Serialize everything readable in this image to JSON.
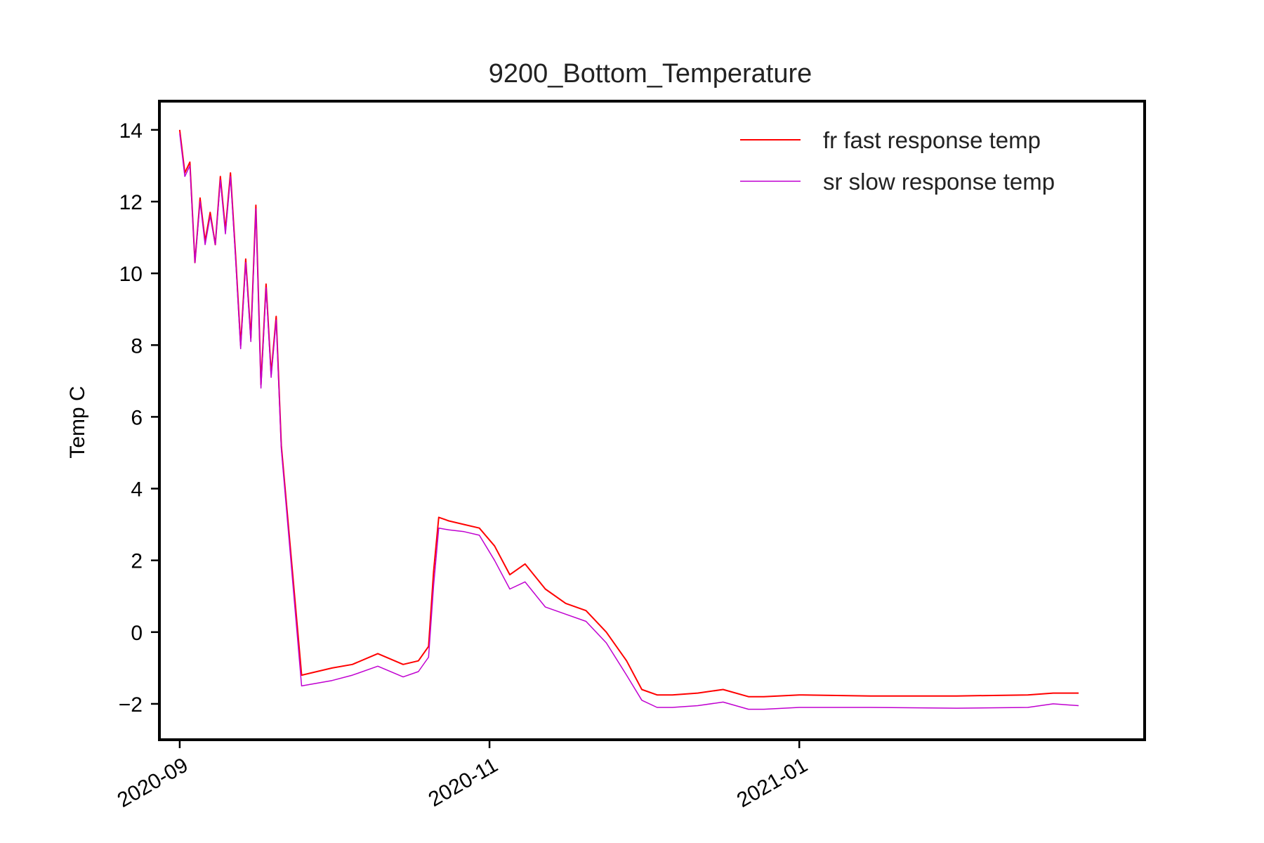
{
  "chart_data": {
    "type": "line",
    "title": "9200_Bottom_Temperature",
    "xlabel": "",
    "ylabel": "Temp C",
    "x_type": "date",
    "xlim": [
      "2020-08-28",
      "2021-03-10"
    ],
    "ylim": [
      -3,
      14.8
    ],
    "xticks": [
      "2020-09",
      "2020-11",
      "2021-01"
    ],
    "xtick_dates": [
      "2020-09-01",
      "2020-11-01",
      "2021-01-01"
    ],
    "yticks": [
      14,
      12,
      10,
      8,
      6,
      4,
      2,
      0,
      -2
    ],
    "ytick_labels": [
      "14",
      "12",
      "10",
      "8",
      "6",
      "4",
      "2",
      "0",
      "−2"
    ],
    "grid": false,
    "legend_position": "top-right",
    "series": [
      {
        "name": "fr fast response temp",
        "color": "#ff0000",
        "x": [
          "2020-09-01",
          "2020-09-02",
          "2020-09-03",
          "2020-09-04",
          "2020-09-05",
          "2020-09-06",
          "2020-09-07",
          "2020-09-08",
          "2020-09-09",
          "2020-09-10",
          "2020-09-11",
          "2020-09-12",
          "2020-09-13",
          "2020-09-14",
          "2020-09-15",
          "2020-09-16",
          "2020-09-17",
          "2020-09-18",
          "2020-09-19",
          "2020-09-20",
          "2020-09-21",
          "2020-09-25",
          "2020-10-01",
          "2020-10-05",
          "2020-10-10",
          "2020-10-15",
          "2020-10-18",
          "2020-10-20",
          "2020-10-21",
          "2020-10-22",
          "2020-10-24",
          "2020-10-27",
          "2020-10-30",
          "2020-11-02",
          "2020-11-05",
          "2020-11-08",
          "2020-11-12",
          "2020-11-16",
          "2020-11-20",
          "2020-11-24",
          "2020-11-28",
          "2020-12-01",
          "2020-12-04",
          "2020-12-07",
          "2020-12-12",
          "2020-12-17",
          "2020-12-22",
          "2020-12-25",
          "2021-01-01",
          "2021-01-15",
          "2021-02-01",
          "2021-02-15",
          "2021-02-20",
          "2021-02-25"
        ],
        "y": [
          14.0,
          12.8,
          13.1,
          10.3,
          12.1,
          10.9,
          11.7,
          10.8,
          12.7,
          11.2,
          12.8,
          10.5,
          8.0,
          10.4,
          8.2,
          11.9,
          6.9,
          9.7,
          7.2,
          8.8,
          5.2,
          -1.2,
          -1.0,
          -0.9,
          -0.6,
          -0.9,
          -0.8,
          -0.4,
          1.7,
          3.2,
          3.1,
          3.0,
          2.9,
          2.4,
          1.6,
          1.9,
          1.2,
          0.8,
          0.6,
          0.0,
          -0.8,
          -1.6,
          -1.75,
          -1.75,
          -1.7,
          -1.6,
          -1.8,
          -1.8,
          -1.75,
          -1.78,
          -1.78,
          -1.75,
          -1.7,
          -1.7
        ]
      },
      {
        "name": "sr slow response temp",
        "color": "#c000d0",
        "x": [
          "2020-09-01",
          "2020-09-02",
          "2020-09-03",
          "2020-09-04",
          "2020-09-05",
          "2020-09-06",
          "2020-09-07",
          "2020-09-08",
          "2020-09-09",
          "2020-09-10",
          "2020-09-11",
          "2020-09-12",
          "2020-09-13",
          "2020-09-14",
          "2020-09-15",
          "2020-09-16",
          "2020-09-17",
          "2020-09-18",
          "2020-09-19",
          "2020-09-20",
          "2020-09-21",
          "2020-09-25",
          "2020-10-01",
          "2020-10-05",
          "2020-10-10",
          "2020-10-15",
          "2020-10-18",
          "2020-10-20",
          "2020-10-21",
          "2020-10-22",
          "2020-10-24",
          "2020-10-27",
          "2020-10-30",
          "2020-11-02",
          "2020-11-05",
          "2020-11-08",
          "2020-11-12",
          "2020-11-16",
          "2020-11-20",
          "2020-11-24",
          "2020-11-28",
          "2020-12-01",
          "2020-12-04",
          "2020-12-07",
          "2020-12-12",
          "2020-12-17",
          "2020-12-22",
          "2020-12-25",
          "2021-01-01",
          "2021-01-15",
          "2021-02-01",
          "2021-02-15",
          "2021-02-20",
          "2021-02-25"
        ],
        "y": [
          13.9,
          12.7,
          13.0,
          10.3,
          12.0,
          10.8,
          11.6,
          10.8,
          12.6,
          11.1,
          12.7,
          10.4,
          7.9,
          10.3,
          8.1,
          11.8,
          6.8,
          9.6,
          7.1,
          8.7,
          5.1,
          -1.5,
          -1.35,
          -1.2,
          -0.95,
          -1.25,
          -1.1,
          -0.7,
          1.3,
          2.9,
          2.85,
          2.8,
          2.7,
          2.0,
          1.2,
          1.4,
          0.7,
          0.5,
          0.3,
          -0.3,
          -1.2,
          -1.9,
          -2.1,
          -2.1,
          -2.05,
          -1.95,
          -2.15,
          -2.15,
          -2.1,
          -2.1,
          -2.12,
          -2.1,
          -2.0,
          -2.05
        ]
      }
    ]
  }
}
